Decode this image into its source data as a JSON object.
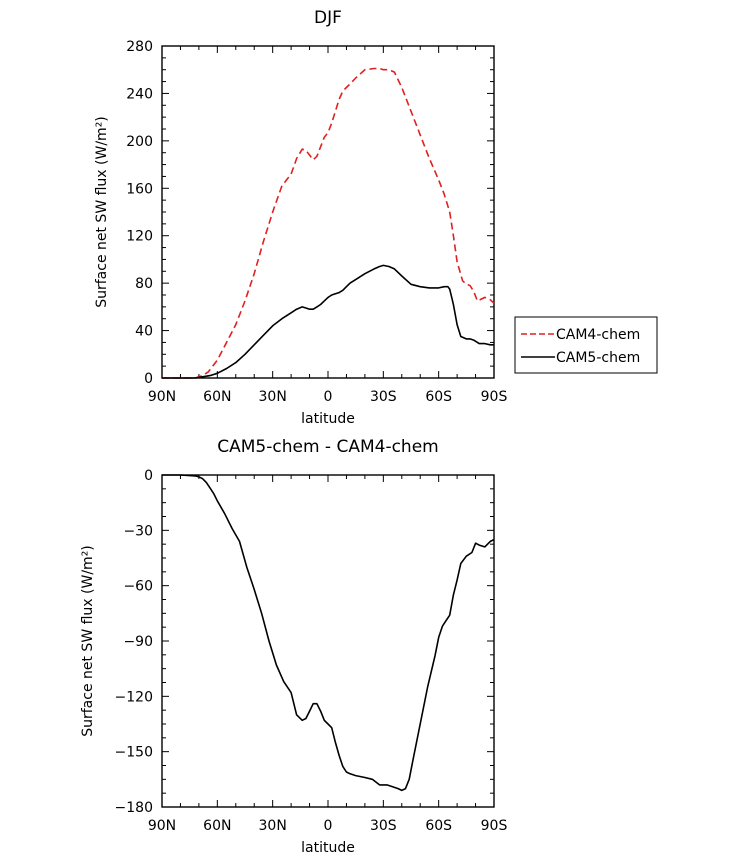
{
  "chart_data": [
    {
      "type": "line",
      "title": "DJF",
      "xlabel": "latitude",
      "ylabel": "Surface net SW flux (W/m²)",
      "xlim": [
        -90,
        90
      ],
      "ylim": [
        0,
        280
      ],
      "x_ticks": [
        -90,
        -60,
        -30,
        0,
        30,
        60,
        90
      ],
      "x_tick_labels": [
        "90N",
        "60N",
        "30N",
        "0",
        "30S",
        "60S",
        "90S"
      ],
      "y_ticks": [
        0,
        40,
        80,
        120,
        160,
        200,
        240,
        280
      ],
      "y_tick_labels": [
        "0",
        "40",
        "80",
        "120",
        "160",
        "200",
        "240",
        "280"
      ],
      "legend": {
        "position": "right",
        "entries": [
          "CAM4-chem",
          "CAM5-chem"
        ]
      },
      "series": [
        {
          "name": "CAM4-chem",
          "color": "#e02020",
          "dash": "dashed",
          "x": [
            -90,
            -80,
            -72,
            -68,
            -65,
            -60,
            -55,
            -50,
            -45,
            -40,
            -35,
            -30,
            -25,
            -20,
            -17,
            -14,
            -12,
            -10,
            -8,
            -6,
            -4,
            -2,
            0,
            2,
            4,
            6,
            8,
            10,
            12,
            15,
            20,
            25,
            28,
            30,
            33,
            36,
            40,
            45,
            50,
            55,
            60,
            63,
            66,
            68,
            70,
            73,
            75,
            77,
            79,
            81,
            85,
            88,
            90
          ],
          "values": [
            0,
            0,
            0,
            2,
            5,
            15,
            30,
            45,
            65,
            88,
            115,
            140,
            162,
            172,
            185,
            193,
            192,
            188,
            184,
            187,
            195,
            203,
            207,
            215,
            225,
            235,
            242,
            245,
            248,
            253,
            260,
            261,
            261,
            260,
            260,
            258,
            245,
            225,
            205,
            185,
            167,
            155,
            140,
            120,
            98,
            82,
            79,
            78,
            73,
            65,
            68,
            66,
            63
          ]
        },
        {
          "name": "CAM5-chem",
          "color": "#000000",
          "dash": "solid",
          "x": [
            -90,
            -72,
            -68,
            -64,
            -60,
            -55,
            -50,
            -45,
            -40,
            -35,
            -30,
            -25,
            -20,
            -17,
            -14,
            -12,
            -10,
            -8,
            -6,
            -4,
            -2,
            0,
            2,
            4,
            6,
            8,
            10,
            12,
            15,
            20,
            25,
            28,
            30,
            33,
            36,
            40,
            45,
            50,
            55,
            60,
            63,
            65,
            66,
            68,
            70,
            72,
            75,
            77,
            79,
            82,
            85,
            88,
            90
          ],
          "values": [
            0,
            0,
            1,
            2,
            4,
            8,
            13,
            20,
            28,
            36,
            44,
            50,
            55,
            58,
            60,
            59,
            58,
            58,
            60,
            62,
            65,
            68,
            70,
            71,
            72,
            74,
            77,
            80,
            83,
            88,
            92,
            94,
            95,
            94,
            92,
            86,
            79,
            77,
            76,
            76,
            77,
            77,
            75,
            62,
            45,
            35,
            33,
            33,
            32,
            29,
            29,
            28,
            28
          ]
        }
      ]
    },
    {
      "type": "line",
      "title": "CAM5-chem - CAM4-chem",
      "xlabel": "latitude",
      "ylabel": "Surface net SW flux (W/m²)",
      "xlim": [
        -90,
        90
      ],
      "ylim": [
        -180,
        0
      ],
      "x_ticks": [
        -90,
        -60,
        -30,
        0,
        30,
        60,
        90
      ],
      "x_tick_labels": [
        "90N",
        "60N",
        "30N",
        "0",
        "30S",
        "60S",
        "90S"
      ],
      "y_ticks": [
        -180,
        -150,
        -120,
        -90,
        -60,
        -30,
        0
      ],
      "y_tick_labels": [
        "−180",
        "−150",
        "−120",
        "−90",
        "−60",
        "−30",
        "0"
      ],
      "series": [
        {
          "color": "#000000",
          "dash": "solid",
          "x": [
            -90,
            -80,
            -72,
            -70,
            -68,
            -66,
            -64,
            -62,
            -60,
            -56,
            -52,
            -48,
            -44,
            -40,
            -36,
            -32,
            -28,
            -24,
            -20,
            -17,
            -14,
            -12,
            -10,
            -8,
            -6,
            -4,
            -2,
            0,
            2,
            4,
            6,
            8,
            10,
            12,
            15,
            20,
            24,
            28,
            32,
            35,
            38,
            40,
            42,
            44,
            46,
            50,
            54,
            58,
            60,
            62,
            64,
            66,
            68,
            70,
            72,
            75,
            78,
            80,
            82,
            85,
            88,
            90
          ],
          "values": [
            0,
            0,
            -0.5,
            -1,
            -2,
            -4,
            -7,
            -10,
            -14,
            -21,
            -29,
            -36,
            -50,
            -62,
            -75,
            -90,
            -103,
            -112,
            -118,
            -130,
            -133,
            -132,
            -128,
            -124,
            -124,
            -128,
            -133,
            -135,
            -137,
            -145,
            -152,
            -158,
            -161,
            -162,
            -163,
            -164,
            -165,
            -168,
            -168,
            -169,
            -170,
            -171,
            -170,
            -165,
            -155,
            -135,
            -115,
            -98,
            -88,
            -82,
            -79,
            -76,
            -65,
            -57,
            -48,
            -44,
            -42,
            -37,
            -38,
            -39,
            -36,
            -35
          ]
        }
      ]
    }
  ]
}
